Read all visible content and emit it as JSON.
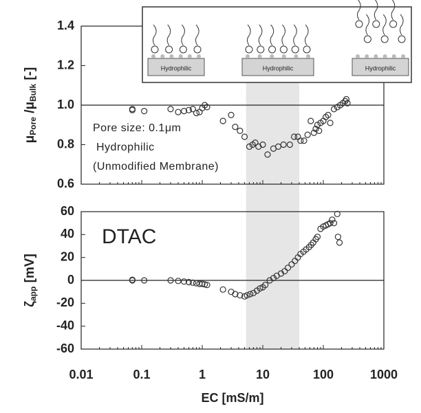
{
  "chart_data": [
    {
      "type": "scatter",
      "ylabel": [
        "μ",
        "Pore",
        " /μ",
        "Bulk",
        " [-]"
      ],
      "annotations": [
        "Pore size: 0.1μm",
        "Hydrophilic",
        "(Unmodified Membrane)"
      ],
      "inset_labels": [
        "Hydrophilic",
        "Hydrophilic",
        "Hydrophilic"
      ],
      "x": [
        0.07,
        0.07,
        0.11,
        0.3,
        0.4,
        0.5,
        0.6,
        0.7,
        0.8,
        0.9,
        1.0,
        1.1,
        1.2,
        2.2,
        3.0,
        3.5,
        4.2,
        5.0,
        6.0,
        6.8,
        7.5,
        8.5,
        10,
        12,
        15,
        18,
        22,
        28,
        33,
        38,
        42,
        48,
        55,
        62,
        70,
        75,
        80,
        85,
        90,
        100,
        110,
        120,
        130,
        150,
        170,
        190,
        210,
        230,
        240,
        250
      ],
      "values": [
        0.98,
        0.975,
        0.97,
        0.98,
        0.965,
        0.97,
        0.975,
        0.98,
        0.96,
        0.965,
        0.985,
        1.0,
        0.99,
        0.92,
        0.95,
        0.89,
        0.87,
        0.84,
        0.79,
        0.8,
        0.81,
        0.79,
        0.8,
        0.75,
        0.78,
        0.79,
        0.8,
        0.8,
        0.84,
        0.84,
        0.82,
        0.82,
        0.85,
        0.92,
        0.86,
        0.88,
        0.9,
        0.87,
        0.91,
        0.92,
        0.94,
        0.95,
        0.91,
        0.98,
        0.99,
        1.0,
        1.01,
        1.02,
        1.03,
        1.01
      ],
      "marker_color": "#333333",
      "xlim": [
        0.01,
        1000
      ],
      "xscale": "log",
      "ylim": [
        0.6,
        1.4
      ],
      "yticks": [
        0.6,
        0.8,
        {
          "value": 1,
          "label": "1.0"
        },
        1.2,
        1.4
      ],
      "hline": 1,
      "shaded_range": [
        5.3,
        40
      ]
    },
    {
      "type": "scatter",
      "ylabel": [
        "ζ",
        "app",
        " [mV]"
      ],
      "xlabel": "EC [mS/m]",
      "annotations": [
        "DTAC"
      ],
      "x": [
        0.07,
        0.07,
        0.11,
        0.3,
        0.4,
        0.5,
        0.6,
        0.7,
        0.8,
        0.9,
        1.0,
        1.1,
        1.2,
        2.2,
        3.0,
        3.5,
        4.2,
        5.0,
        5.5,
        6.2,
        7,
        8,
        9,
        10,
        11,
        13,
        15,
        17,
        20,
        23,
        26,
        30,
        34,
        38,
        42,
        47,
        52,
        58,
        63,
        68,
        75,
        80,
        90,
        100,
        110,
        120,
        130,
        140,
        150,
        170,
        175,
        185
      ],
      "values": [
        0.5,
        0,
        0,
        0,
        -0.5,
        -1,
        -1.5,
        -2,
        -2.5,
        -3,
        -3,
        -3.5,
        -4,
        -8,
        -10,
        -12,
        -13,
        -14,
        -13,
        -12,
        -11,
        -9,
        -7,
        -6,
        -4,
        0,
        2,
        4,
        6,
        8,
        11,
        14,
        17,
        20,
        23,
        25,
        27,
        29,
        31,
        33,
        36,
        38,
        45,
        47,
        48,
        49,
        50,
        53,
        50,
        58,
        38,
        33
      ],
      "marker_color": "#333333",
      "xlim": [
        0.01,
        1000
      ],
      "xscale": "log",
      "xticks": [
        0.01,
        0.1,
        1,
        10,
        100,
        1000
      ],
      "ylim": [
        -60,
        60
      ],
      "yticks": [
        -60,
        -40,
        -20,
        0,
        20,
        40,
        60
      ],
      "hline": 0,
      "shaded_range": [
        5.3,
        40
      ]
    }
  ]
}
